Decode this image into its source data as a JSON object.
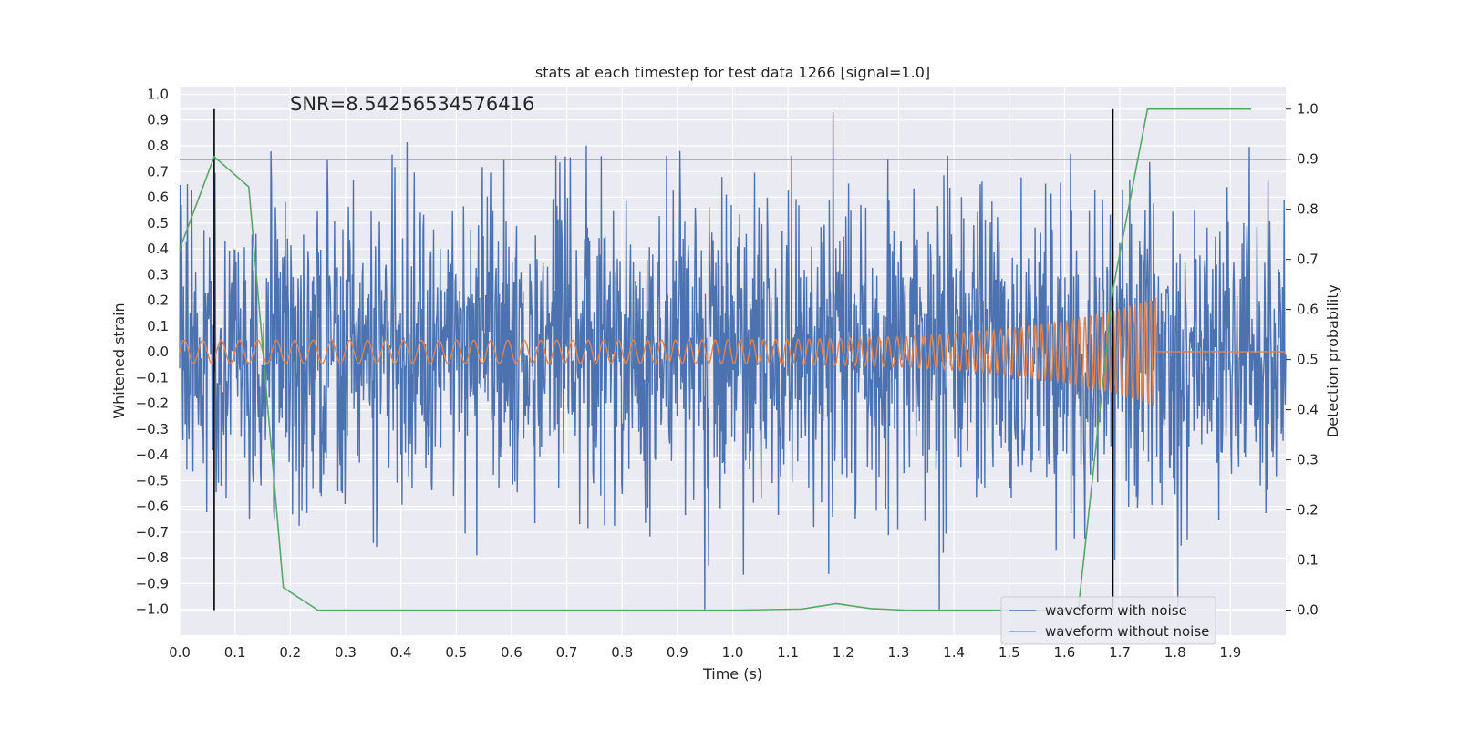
{
  "chart_data": {
    "type": "line",
    "title": "stats at each timestep for test data 1266 [signal=1.0]",
    "xlabel": "Time (s)",
    "ylabel": "Whitened strain",
    "y2label": "Detection probability",
    "annotation": "SNR=8.54256534576416",
    "xlim": [
      0.0,
      2.0
    ],
    "ylim": [
      -1.1,
      1.03
    ],
    "y2lim": [
      -0.05,
      1.045
    ],
    "xticks": [
      0.0,
      0.1,
      0.2,
      0.3,
      0.4,
      0.5,
      0.6,
      0.7,
      0.8,
      0.9,
      1.0,
      1.1,
      1.2,
      1.3,
      1.4,
      1.5,
      1.6,
      1.7,
      1.8,
      1.9
    ],
    "xtick_labels": [
      "0.0",
      "0.1",
      "0.2",
      "0.3",
      "0.4",
      "0.5",
      "0.6",
      "0.7",
      "0.8",
      "0.9",
      "1.0",
      "1.1",
      "1.2",
      "1.3",
      "1.4",
      "1.5",
      "1.6",
      "1.7",
      "1.8",
      "1.9"
    ],
    "yticks": [
      1.0,
      0.9,
      0.8,
      0.7,
      0.6,
      0.5,
      0.4,
      0.3,
      0.2,
      0.1,
      0.0,
      -0.1,
      -0.2,
      -0.3,
      -0.4,
      -0.5,
      -0.6,
      -0.7,
      -0.8,
      -0.9,
      -1.0
    ],
    "ytick_labels": [
      "1.0",
      "0.9",
      "0.8",
      "0.7",
      "0.6",
      "0.5",
      "0.4",
      "0.3",
      "0.2",
      "0.1",
      "0.0",
      "−0.1",
      "−0.2",
      "−0.3",
      "−0.4",
      "−0.5",
      "−0.6",
      "−0.7",
      "−0.8",
      "−0.9",
      "−1.0"
    ],
    "y2ticks": [
      1.0,
      0.9,
      0.8,
      0.7,
      0.6,
      0.5,
      0.4,
      0.3,
      0.2,
      0.1,
      0.0
    ],
    "y2tick_labels": [
      "1.0",
      "0.9",
      "0.8",
      "0.7",
      "0.6",
      "0.5",
      "0.4",
      "0.3",
      "0.2",
      "0.1",
      "0.0"
    ],
    "grid": true,
    "legend_position": "lower-right",
    "series": [
      {
        "name": "waveform with noise",
        "color": "#4c72b0",
        "kind": "noise",
        "sample_count": 2000,
        "amplitude_range": [
          -1.0,
          0.93
        ],
        "std": 0.3
      },
      {
        "name": "waveform without noise",
        "color": "#dd8452",
        "kind": "chirp",
        "t_start": 0.0,
        "t_merger": 1.765,
        "start_frequency_hz": 30,
        "end_frequency_hz": 110,
        "start_amplitude": 0.045,
        "peak_amplitude": 0.21
      }
    ],
    "detection_probability": {
      "name": "detection probability",
      "color": "#55a868",
      "axis": "right",
      "t": [
        0.0,
        0.0625,
        0.125,
        0.1875,
        0.25,
        0.3125,
        0.375,
        0.4375,
        0.5,
        0.5625,
        0.625,
        0.6875,
        0.75,
        0.8125,
        0.875,
        0.9375,
        1.0,
        1.0625,
        1.125,
        1.1875,
        1.25,
        1.3125,
        1.375,
        1.4375,
        1.5,
        1.5625,
        1.625,
        1.6875,
        1.75,
        1.8125,
        1.875,
        1.9375
      ],
      "values": [
        0.72,
        0.905,
        0.845,
        0.045,
        0.0,
        0.0,
        0.0,
        0.0,
        0.0,
        0.0,
        0.0,
        0.0,
        0.0,
        0.0,
        0.0,
        0.0,
        0.0,
        0.001,
        0.002,
        0.013,
        0.003,
        0.0,
        0.0,
        0.0,
        0.0,
        0.0,
        0.003,
        0.64,
        1.0,
        1.0,
        1.0,
        1.0
      ]
    },
    "threshold": {
      "value": 0.9,
      "axis": "right",
      "color": "#c44e52"
    },
    "vertical_markers": [
      {
        "x": 0.0625,
        "color": "#000000"
      },
      {
        "x": 1.6875,
        "color": "#000000"
      }
    ],
    "legend": [
      {
        "label": "waveform with noise",
        "color": "#4c72b0"
      },
      {
        "label": "waveform without noise",
        "color": "#dd8452"
      }
    ]
  }
}
